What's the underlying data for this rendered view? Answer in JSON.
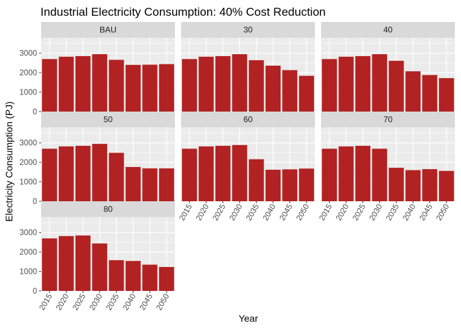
{
  "chart_data": {
    "type": "bar",
    "title": "Industrial Electricity Consumption: 40% Cost Reduction",
    "xlabel": "Year",
    "ylabel": "Electricity Consumption (PJ)",
    "categories": [
      "2015",
      "2020",
      "2025",
      "2030",
      "2035",
      "2040",
      "2045",
      "2050"
    ],
    "y_ticks": [
      0,
      1000,
      2000,
      3000
    ],
    "ylim": [
      0,
      3800
    ],
    "bar_color": "#B22222",
    "panel_background": "#EBEBEB",
    "strip_background": "#D9D9D9",
    "grid": true,
    "panels": [
      {
        "label": "BAU",
        "values": [
          2700,
          2820,
          2850,
          2950,
          2660,
          2400,
          2410,
          2440
        ]
      },
      {
        "label": "30",
        "values": [
          2700,
          2820,
          2850,
          2950,
          2640,
          2360,
          2130,
          1840
        ]
      },
      {
        "label": "40",
        "values": [
          2700,
          2820,
          2850,
          2950,
          2610,
          2070,
          1880,
          1720
        ]
      },
      {
        "label": "50",
        "values": [
          2700,
          2820,
          2850,
          2950,
          2490,
          1760,
          1690,
          1690
        ]
      },
      {
        "label": "60",
        "values": [
          2700,
          2820,
          2850,
          2890,
          2160,
          1620,
          1640,
          1680
        ]
      },
      {
        "label": "70",
        "values": [
          2700,
          2820,
          2850,
          2700,
          1720,
          1600,
          1650,
          1560
        ]
      },
      {
        "label": "80",
        "values": [
          2700,
          2820,
          2850,
          2440,
          1580,
          1540,
          1350,
          1230
        ]
      }
    ]
  }
}
